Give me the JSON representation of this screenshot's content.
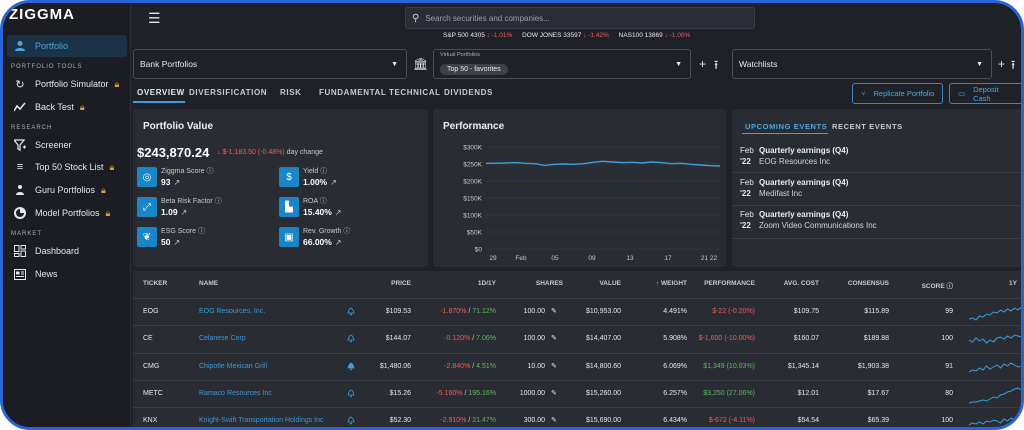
{
  "app": {
    "logo": "ZIGGMA"
  },
  "sidebar": {
    "active": {
      "label": "Portfolio",
      "icon": "portfolio-icon"
    },
    "sections": [
      "PORTFOLIO TOOLS",
      "RESEARCH",
      "MARKET"
    ],
    "tools": [
      {
        "label": "Portfolio Simulator",
        "icon": "simulator-icon",
        "locked": true
      },
      {
        "label": "Back Test",
        "icon": "backtest-icon",
        "locked": true
      }
    ],
    "research": [
      {
        "label": "Screener",
        "icon": "screener-icon",
        "locked": false
      },
      {
        "label": "Top 50 Stock List",
        "icon": "list-icon",
        "locked": true
      },
      {
        "label": "Guru Portfolios",
        "icon": "guru-icon",
        "locked": true
      },
      {
        "label": "Model Portfolios",
        "icon": "model-icon",
        "locked": true
      }
    ],
    "market": [
      {
        "label": "Dashboard",
        "icon": "dashboard-icon"
      },
      {
        "label": "News",
        "icon": "news-icon"
      }
    ]
  },
  "search": {
    "placeholder": "Search securities and companies..."
  },
  "ticker": [
    {
      "label": "S&P 500 4305",
      "change": "-1.01%"
    },
    {
      "label": "DOW JONES 33597",
      "change": "-1.42%"
    },
    {
      "label": "NAS100 13869",
      "change": "-1.00%"
    }
  ],
  "selectors": {
    "bank": "Bank Portfolios",
    "virtual_label": "Virtual Portfolios",
    "virtual_chip": "Top 50 - favorites",
    "watchlists": "Watchlists"
  },
  "tabs": [
    "OVERVIEW",
    "DIVERSIFICATION",
    "RISK",
    "FUNDAMENTAL",
    "TECHNICAL",
    "DIVIDENDS"
  ],
  "actions": {
    "replicate": "Replicate Portfolio",
    "deposit": "Deposit Cash"
  },
  "portfolio_value": {
    "title": "Portfolio Value",
    "value": "$243,870.24",
    "change": "$-1,183.50 (-0.48%)",
    "change_suffix": "day change",
    "metrics": [
      {
        "label": "Ziggma Score",
        "value": "93",
        "icon": "ziggma-score-icon"
      },
      {
        "label": "Yield",
        "value": "1.00%",
        "icon": "dollar-icon"
      },
      {
        "label": "Beta Risk Factor",
        "value": "1.09",
        "icon": "beta-icon"
      },
      {
        "label": "ROA",
        "value": "15.40%",
        "icon": "factory-icon"
      },
      {
        "label": "ESG Score",
        "value": "50",
        "icon": "leaf-icon"
      },
      {
        "label": "Rev. Growth",
        "value": "66.00%",
        "icon": "cash-icon"
      }
    ]
  },
  "chart_data": {
    "type": "line",
    "title": "Performance",
    "y_ticks": [
      "$300K",
      "$250K",
      "$200K",
      "$150K",
      "$100K",
      "$50K",
      "$0"
    ],
    "x_ticks": [
      "29",
      "Feb",
      "05",
      "09",
      "13",
      "17",
      "21 22"
    ],
    "ylim": [
      0,
      300000
    ],
    "x": [
      0,
      1,
      2,
      3,
      4,
      5,
      6,
      7,
      8,
      9,
      10,
      11,
      12,
      13,
      14,
      15,
      16,
      17,
      18,
      19,
      20,
      21,
      22,
      23,
      24
    ],
    "values": [
      252000,
      252500,
      253000,
      254000,
      252000,
      251000,
      246000,
      249000,
      250000,
      249000,
      251000,
      255000,
      258000,
      256000,
      254000,
      255000,
      253000,
      256000,
      254000,
      251000,
      252000,
      249000,
      247000,
      245000,
      244000
    ]
  },
  "events": {
    "tabs": [
      "UPCOMING EVENTS",
      "RECENT EVENTS"
    ],
    "items": [
      {
        "month": "Feb",
        "year": "'22",
        "title": "Quarterly earnings (Q4)",
        "company": "EOG Resources Inc"
      },
      {
        "month": "Feb",
        "year": "'22",
        "title": "Quarterly earnings (Q4)",
        "company": "Medifast Inc"
      },
      {
        "month": "Feb",
        "year": "'22",
        "title": "Quarterly earnings (Q4)",
        "company": "Zoom Video Communications Inc"
      }
    ]
  },
  "table": {
    "headers": [
      "TICKER",
      "NAME",
      "PRICE",
      "1D/1Y",
      "SHARES",
      "VALUE",
      "WEIGHT",
      "PERFORMANCE",
      "AVG. COST",
      "CONSENSUS",
      "SCORE",
      "1Y"
    ],
    "rows": [
      {
        "ticker": "EOG",
        "name": "EOG Resources, Inc.",
        "price": "$109.53",
        "d1": "-1.870%",
        "y1": "71.12%",
        "shares": "100.00",
        "value": "$10,953.00",
        "weight": "4.491%",
        "perf": "$-22 (-0.20%)",
        "perf_pos": false,
        "avg_cost": "$109.75",
        "consensus": "$115.89",
        "score": "99"
      },
      {
        "ticker": "CE",
        "name": "Celanese Corp",
        "price": "$144.07",
        "d1": "-0.120%",
        "y1": "7.06%",
        "shares": "100.00",
        "value": "$14,407.00",
        "weight": "5.908%",
        "perf": "$-1,600 (-10.00%)",
        "perf_pos": false,
        "avg_cost": "$160.07",
        "consensus": "$189.88",
        "score": "100"
      },
      {
        "ticker": "CMG",
        "name": "Chipotle Mexican Grill",
        "price": "$1,480.06",
        "d1": "-2.840%",
        "y1": "4.51%",
        "shares": "10.00",
        "value": "$14,800.60",
        "weight": "6.069%",
        "perf": "$1,349 (10.03%)",
        "perf_pos": true,
        "avg_cost": "$1,345.14",
        "consensus": "$1,903.38",
        "score": "91"
      },
      {
        "ticker": "METC",
        "name": "Ramaco Resources Inc",
        "price": "$15.26",
        "d1": "-5.160%",
        "y1": "195.16%",
        "shares": "1000.00",
        "value": "$15,260.00",
        "weight": "6.257%",
        "perf": "$3,250 (27.06%)",
        "perf_pos": true,
        "avg_cost": "$12.01",
        "consensus": "$17.67",
        "score": "80"
      },
      {
        "ticker": "KNX",
        "name": "Knight-Swift Transportation Holdings Inc",
        "price": "$52.30",
        "d1": "-2.910%",
        "y1": "21.47%",
        "shares": "300.00",
        "value": "$15,690.00",
        "weight": "6.434%",
        "perf": "$-672 (-4.11%)",
        "perf_pos": false,
        "avg_cost": "$54.54",
        "consensus": "$65.39",
        "score": "100"
      }
    ]
  },
  "colors": {
    "accent": "#3aa0dc",
    "negative": "#f05a5a",
    "positive": "#5cb85c",
    "panel": "#2a2c33"
  }
}
